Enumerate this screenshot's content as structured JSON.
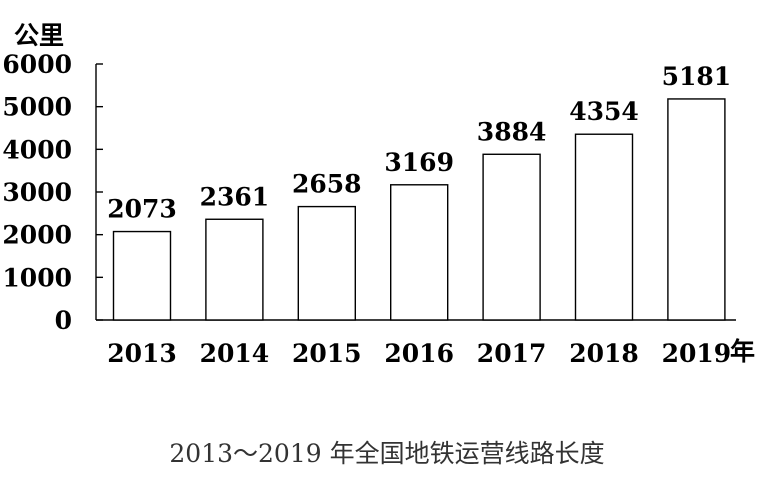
{
  "chart_data": {
    "type": "bar",
    "categories": [
      "2013",
      "2014",
      "2015",
      "2016",
      "2017",
      "2018",
      "2019"
    ],
    "values": [
      2073,
      2361,
      2658,
      3169,
      3884,
      4354,
      5181
    ],
    "data_labels": [
      "2073",
      "2361",
      "2658",
      "3169",
      "3884",
      "4354",
      "5181"
    ],
    "ylabel": "公里",
    "xlabel": "年",
    "ylim": [
      0,
      6000
    ],
    "yticks": [
      "0",
      "1000",
      "2000",
      "3000",
      "4000",
      "5000",
      "6000"
    ],
    "ytick_values": [
      0,
      1000,
      2000,
      3000,
      4000,
      5000,
      6000
    ],
    "grid": false,
    "bar_fill": "#ffffff",
    "bar_stroke": "#000000",
    "caption": "2013～2019 年全国地铁运营线路长度"
  }
}
